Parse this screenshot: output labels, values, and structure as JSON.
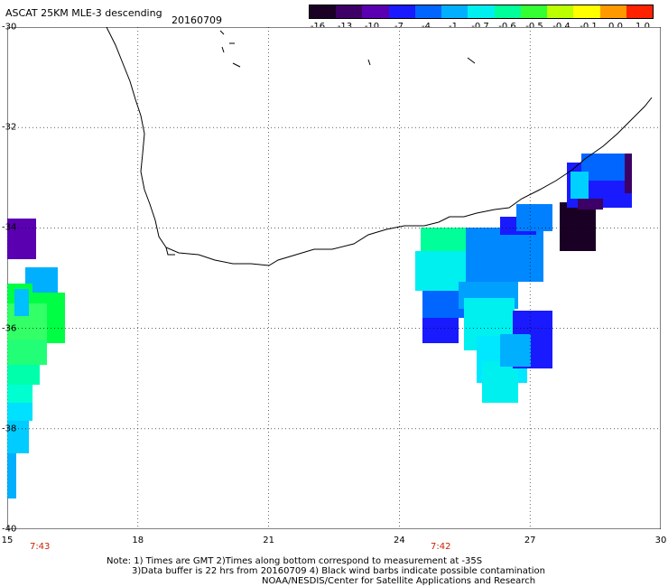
{
  "title": "ASCAT 25KM MLE-3 descending",
  "date": "20160709",
  "colorbar": {
    "labels": [
      "-16",
      "-13",
      "-10",
      "-7",
      "-4",
      "-1",
      "-0.7",
      "-0.6",
      "-0.5",
      "-0.4",
      "-0.1",
      "0.0",
      "1.0"
    ],
    "colors": [
      "#1a0025",
      "#3c0066",
      "#5a00b0",
      "#1a1aff",
      "#0066ff",
      "#00b0ff",
      "#00f0f0",
      "#00ff99",
      "#33ff33",
      "#bbff00",
      "#ffff00",
      "#ff9900",
      "#ff2200"
    ]
  },
  "axes": {
    "lat_labels": [
      "-30",
      "-32",
      "-34",
      "-36",
      "-38",
      "-40"
    ],
    "lon_labels": [
      "15",
      "18",
      "21",
      "24",
      "27",
      "30"
    ],
    "lat_range": [
      -40,
      -30
    ],
    "lon_range": [
      15,
      30
    ]
  },
  "times": [
    {
      "label": "7:43",
      "lon": 15.75
    },
    {
      "label": "7:42",
      "lon": 24.95
    }
  ],
  "notes": [
    "Note: 1) Times are GMT 2)Times along bottom correspond to measurement at -35S",
    "3)Data buffer is 22 hrs from 20160709 4) Black wind barbs indicate possible contamination",
    "NOAA/NESDIS/Center for Satellite Applications and Research"
  ],
  "colors": {
    "coast": "#000000",
    "grid": "#000000",
    "time_label": "#cc2200"
  }
}
